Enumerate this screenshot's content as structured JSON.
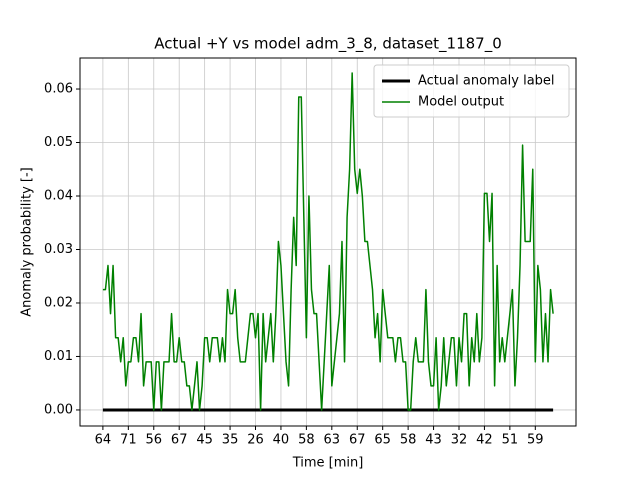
{
  "chart_data": {
    "type": "line",
    "title": "Actual +Y vs model adm_3_8, dataset_1187_0",
    "x_label": "Time [min]",
    "y_label": "Anomaly probability [-]",
    "xlim": [
      -9,
      186
    ],
    "ylim": [
      -0.003,
      0.0658
    ],
    "xticks": [
      {
        "value": 0,
        "label": "64"
      },
      {
        "value": 10,
        "label": "71"
      },
      {
        "value": 20,
        "label": "56"
      },
      {
        "value": 30,
        "label": "67"
      },
      {
        "value": 40,
        "label": "45"
      },
      {
        "value": 50,
        "label": "35"
      },
      {
        "value": 60,
        "label": "26"
      },
      {
        "value": 70,
        "label": "40"
      },
      {
        "value": 80,
        "label": "58"
      },
      {
        "value": 90,
        "label": "63"
      },
      {
        "value": 100,
        "label": "67"
      },
      {
        "value": 110,
        "label": "65"
      },
      {
        "value": 120,
        "label": "58"
      },
      {
        "value": 130,
        "label": "43"
      },
      {
        "value": 140,
        "label": "32"
      },
      {
        "value": 150,
        "label": "42"
      },
      {
        "value": 160,
        "label": "51"
      },
      {
        "value": 170,
        "label": "59"
      }
    ],
    "yticks": [
      {
        "value": 0,
        "label": "0.00"
      },
      {
        "value": 0.01,
        "label": "0.01"
      },
      {
        "value": 0.02,
        "label": "0.02"
      },
      {
        "value": 0.03,
        "label": "0.03"
      },
      {
        "value": 0.04,
        "label": "0.04"
      },
      {
        "value": 0.05,
        "label": "0.05"
      },
      {
        "value": 0.06,
        "label": "0.06"
      }
    ],
    "grid": true,
    "legend": "upper right",
    "series": [
      {
        "name": "Actual anomaly label",
        "color": "#000000",
        "linewidth": 3,
        "values": [
          0,
          0,
          0,
          0,
          0,
          0,
          0,
          0,
          0,
          0,
          0,
          0,
          0,
          0,
          0,
          0,
          0,
          0,
          0,
          0,
          0,
          0,
          0,
          0,
          0,
          0,
          0,
          0,
          0,
          0,
          0,
          0,
          0,
          0,
          0,
          0,
          0,
          0,
          0,
          0,
          0,
          0,
          0,
          0,
          0,
          0,
          0,
          0,
          0,
          0,
          0,
          0,
          0,
          0,
          0,
          0,
          0,
          0,
          0,
          0,
          0,
          0,
          0,
          0,
          0,
          0,
          0,
          0,
          0,
          0,
          0,
          0,
          0,
          0,
          0,
          0,
          0,
          0,
          0,
          0,
          0,
          0,
          0,
          0,
          0,
          0,
          0,
          0,
          0,
          0,
          0,
          0,
          0,
          0,
          0,
          0,
          0,
          0,
          0,
          0,
          0,
          0,
          0,
          0,
          0,
          0,
          0,
          0,
          0,
          0,
          0,
          0,
          0,
          0,
          0,
          0,
          0,
          0,
          0,
          0,
          0,
          0,
          0,
          0,
          0,
          0,
          0,
          0,
          0,
          0,
          0,
          0,
          0,
          0,
          0,
          0,
          0,
          0,
          0,
          0,
          0,
          0,
          0,
          0,
          0,
          0,
          0,
          0,
          0,
          0,
          0,
          0,
          0,
          0,
          0,
          0,
          0,
          0,
          0,
          0,
          0,
          0,
          0,
          0,
          0,
          0,
          0,
          0,
          0,
          0,
          0,
          0,
          0,
          0,
          0,
          0,
          0,
          0
        ]
      },
      {
        "name": "Model output",
        "color": "#008000",
        "linewidth": 1.5,
        "values": [
          0.0225,
          0.0225,
          0.027,
          0.018,
          0.027,
          0.0135,
          0.0135,
          0.009,
          0.0135,
          0.0045,
          0.009,
          0.009,
          0.0135,
          0.0135,
          0.009,
          0.018,
          0.0045,
          0.009,
          0.009,
          0.009,
          0,
          0.009,
          0.009,
          0,
          0.009,
          0.009,
          0.009,
          0.018,
          0.009,
          0.009,
          0.0135,
          0.009,
          0.009,
          0.0045,
          0.0045,
          0,
          0.0045,
          0.009,
          0,
          0.0045,
          0.0135,
          0.0135,
          0.009,
          0.0135,
          0.0135,
          0.0135,
          0.009,
          0.0135,
          0.009,
          0.0225,
          0.018,
          0.018,
          0.0225,
          0.0135,
          0.009,
          0.009,
          0.009,
          0.0135,
          0.018,
          0.018,
          0.0135,
          0.018,
          0,
          0.018,
          0.009,
          0.0135,
          0.018,
          0.009,
          0.018,
          0.0315,
          0.027,
          0.018,
          0.009,
          0.0045,
          0.0225,
          0.036,
          0.027,
          0.0585,
          0.0585,
          0.036,
          0.0135,
          0.04,
          0.0225,
          0.018,
          0.018,
          0.009,
          0,
          0.009,
          0.018,
          0.027,
          0.0045,
          0.009,
          0.0135,
          0.018,
          0.0315,
          0.009,
          0.036,
          0.045,
          0.063,
          0.045,
          0.0405,
          0.045,
          0.04,
          0.0315,
          0.0315,
          0.027,
          0.0225,
          0.0135,
          0.018,
          0.009,
          0.0225,
          0.018,
          0.0135,
          0.0135,
          0.0135,
          0.009,
          0.0135,
          0.0135,
          0.009,
          0.009,
          0,
          0,
          0.009,
          0.0135,
          0.009,
          0.009,
          0.009,
          0.0225,
          0.009,
          0.0045,
          0.0045,
          0.0135,
          0,
          0.0045,
          0.0135,
          0.0045,
          0.009,
          0.0135,
          0.0135,
          0.0045,
          0.0135,
          0.009,
          0.018,
          0.018,
          0.0045,
          0.0135,
          0.009,
          0.018,
          0.009,
          0.0135,
          0.0405,
          0.0405,
          0.0315,
          0.0405,
          0.0045,
          0.027,
          0.009,
          0.0135,
          0.009,
          0.0135,
          0.018,
          0.0225,
          0.0045,
          0.0135,
          0.027,
          0.0495,
          0.0315,
          0.0315,
          0.0315,
          0.045,
          0.009,
          0.027,
          0.0225,
          0.009,
          0.018,
          0.009,
          0.0225,
          0.018
        ]
      }
    ]
  }
}
